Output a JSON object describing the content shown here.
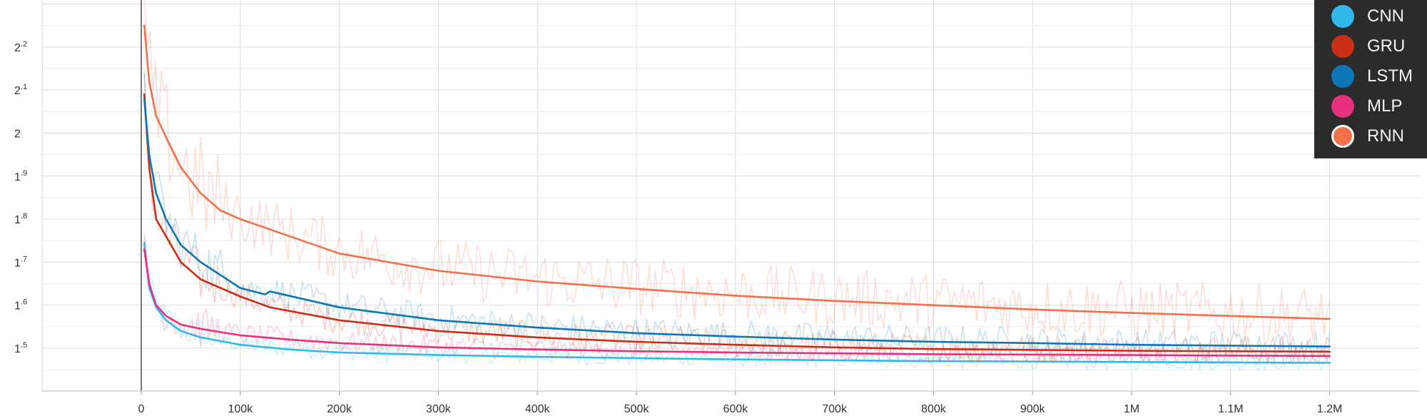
{
  "chart_data": {
    "type": "line",
    "title": "",
    "xlabel": "",
    "ylabel": "",
    "xlim": [
      -100000,
      1300000
    ],
    "ylim": [
      1.42,
      2.35
    ],
    "y_scale": "log2 display",
    "grid": true,
    "legend_placement": "top-right",
    "x_ticks": [
      {
        "value": 0,
        "label": "0"
      },
      {
        "value": 100000,
        "label": "100k"
      },
      {
        "value": 200000,
        "label": "200k"
      },
      {
        "value": 300000,
        "label": "300k"
      },
      {
        "value": 400000,
        "label": "400k"
      },
      {
        "value": 500000,
        "label": "500k"
      },
      {
        "value": 600000,
        "label": "600k"
      },
      {
        "value": 700000,
        "label": "700k"
      },
      {
        "value": 800000,
        "label": "800k"
      },
      {
        "value": 900000,
        "label": "900k"
      },
      {
        "value": 1000000,
        "label": "1M"
      },
      {
        "value": 1100000,
        "label": "1.1M"
      },
      {
        "value": 1200000,
        "label": "1.2M"
      }
    ],
    "y_ticks": [
      {
        "value": 1.5,
        "base": "1",
        "exp": ".5"
      },
      {
        "value": 1.6,
        "base": "1",
        "exp": ".6"
      },
      {
        "value": 1.7,
        "base": "1",
        "exp": ".7"
      },
      {
        "value": 1.8,
        "base": "1",
        "exp": ".8"
      },
      {
        "value": 1.9,
        "base": "1",
        "exp": ".9"
      },
      {
        "value": 2.0,
        "base": "2",
        "exp": ""
      },
      {
        "value": 2.1,
        "base": "2",
        "exp": ".1"
      },
      {
        "value": 2.2,
        "base": "2",
        "exp": ".2"
      }
    ],
    "series": [
      {
        "name": "CNN",
        "color": "#31b9ec",
        "x": [
          3000,
          8000,
          15000,
          25000,
          40000,
          60000,
          100000,
          150000,
          200000,
          300000,
          400000,
          500000,
          600000,
          700000,
          800000,
          900000,
          1000000,
          1100000,
          1200000
        ],
        "values": [
          1.745,
          1.64,
          1.595,
          1.565,
          1.54,
          1.525,
          1.508,
          1.497,
          1.49,
          1.484,
          1.48,
          1.477,
          1.474,
          1.472,
          1.47,
          1.469,
          1.468,
          1.467,
          1.466
        ]
      },
      {
        "name": "GRU",
        "color": "#c92f15",
        "x": [
          3000,
          8000,
          15000,
          25000,
          40000,
          60000,
          100000,
          130000,
          200000,
          300000,
          400000,
          500000,
          600000,
          700000,
          800000,
          900000,
          1000000,
          1100000,
          1200000
        ],
        "values": [
          2.09,
          1.92,
          1.8,
          1.76,
          1.7,
          1.66,
          1.62,
          1.595,
          1.565,
          1.54,
          1.525,
          1.515,
          1.508,
          1.502,
          1.498,
          1.496,
          1.494,
          1.493,
          1.492
        ]
      },
      {
        "name": "LSTM",
        "color": "#0e77b5",
        "x": [
          3000,
          8000,
          15000,
          25000,
          40000,
          60000,
          100000,
          125000,
          130000,
          200000,
          300000,
          400000,
          500000,
          600000,
          700000,
          800000,
          900000,
          1000000,
          1100000,
          1200000
        ],
        "values": [
          2.08,
          1.95,
          1.86,
          1.8,
          1.74,
          1.7,
          1.64,
          1.625,
          1.632,
          1.595,
          1.565,
          1.548,
          1.535,
          1.527,
          1.52,
          1.515,
          1.512,
          1.508,
          1.506,
          1.504
        ]
      },
      {
        "name": "MLP",
        "color": "#e7317a",
        "x": [
          3000,
          8000,
          15000,
          25000,
          40000,
          60000,
          100000,
          150000,
          200000,
          300000,
          400000,
          500000,
          600000,
          700000,
          800000,
          900000,
          1000000,
          1100000,
          1200000
        ],
        "values": [
          1.73,
          1.65,
          1.6,
          1.575,
          1.555,
          1.545,
          1.53,
          1.52,
          1.512,
          1.502,
          1.497,
          1.493,
          1.49,
          1.488,
          1.486,
          1.485,
          1.484,
          1.483,
          1.482
        ]
      },
      {
        "name": "RNN",
        "color": "#f2714a",
        "x": [
          3000,
          8000,
          15000,
          25000,
          40000,
          60000,
          80000,
          100000,
          150000,
          200000,
          300000,
          400000,
          500000,
          600000,
          700000,
          800000,
          900000,
          1000000,
          1100000,
          1200000
        ],
        "values": [
          2.25,
          2.12,
          2.04,
          1.99,
          1.92,
          1.86,
          1.82,
          1.8,
          1.76,
          1.72,
          1.68,
          1.655,
          1.638,
          1.622,
          1.61,
          1.6,
          1.59,
          1.582,
          1.575,
          1.568
        ]
      }
    ]
  }
}
